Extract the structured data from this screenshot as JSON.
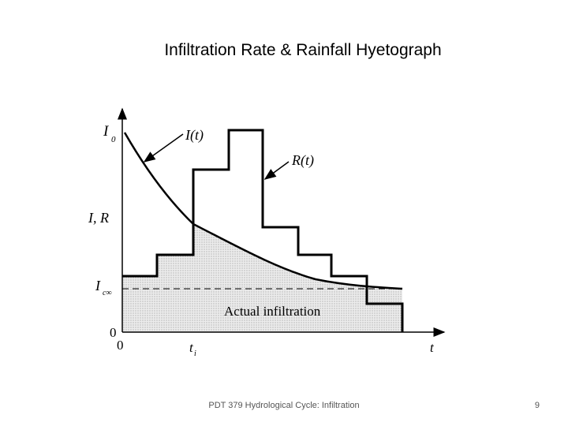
{
  "slide": {
    "title": "Infiltration Rate & Rainfall Hyetograph",
    "footer": "PDT 379 Hydrological Cycle: Infiltration",
    "page_number": "9"
  },
  "diagram": {
    "labels": {
      "I0_main": "I",
      "I0_sub": "0",
      "I_of_t": "I(t)",
      "R_of_t": "R(t)",
      "I_R": "I, R",
      "Ic_main": "I",
      "Ic_sub": "c∞",
      "zero_y": "0",
      "zero_x": "0",
      "tp_main": "t",
      "tp_sub": "i",
      "t_axis": "t",
      "actual_infiltration": "Actual infiltration"
    }
  }
}
